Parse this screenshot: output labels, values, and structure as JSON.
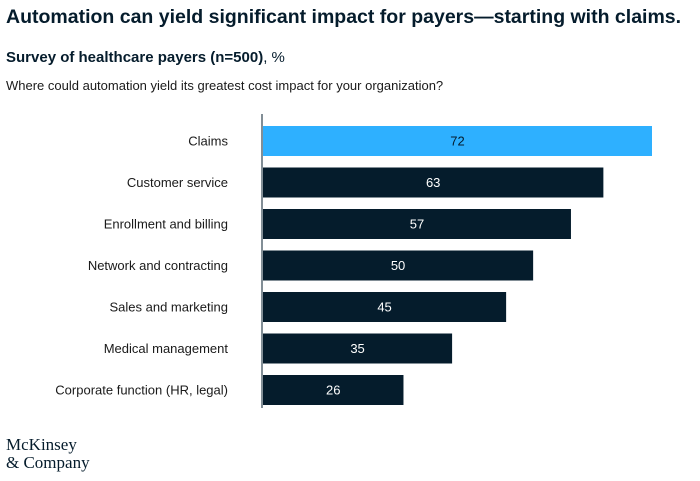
{
  "header": {
    "title": "Automation can yield significant impact for payers—starting with claims.",
    "subtitle_strong": "Survey of healthcare payers (n=500)",
    "subtitle_unit": ", %",
    "question": "Where could automation yield its greatest cost impact for your organization?"
  },
  "logo": {
    "line1": "McKinsey",
    "line2": "& Company"
  },
  "chart_data": {
    "type": "bar",
    "orientation": "horizontal",
    "title": "Automation can yield significant impact for payers—starting with claims.",
    "subtitle": "Survey of healthcare payers (n=500), %",
    "question": "Where could automation yield its greatest cost impact for your organization?",
    "categories": [
      "Claims",
      "Customer service",
      "Enrollment and billing",
      "Network and contracting",
      "Sales and marketing",
      "Medical management",
      "Corporate function (HR, legal)"
    ],
    "values": [
      72,
      63,
      57,
      50,
      45,
      35,
      26
    ],
    "xlim": [
      0,
      72
    ],
    "highlight_index": 0,
    "colors": {
      "highlight": "#2eb0ff",
      "bar": "#051c2c",
      "highlight_text": "#051c2c",
      "bar_text": "#ffffff",
      "axis": "#051c2c"
    }
  }
}
